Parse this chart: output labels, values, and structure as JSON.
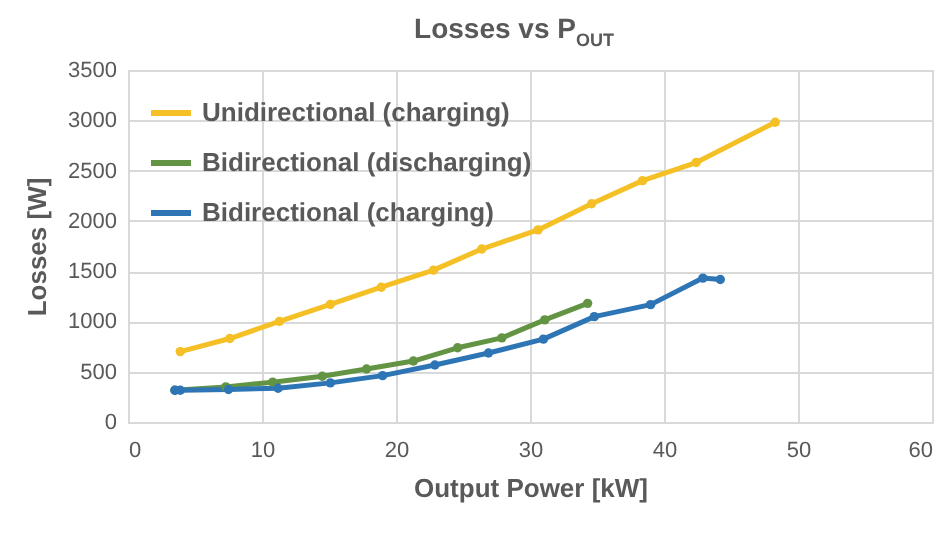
{
  "chart_data": {
    "type": "line",
    "title": "Losses vs P$_{OUT}$",
    "xlabel": "Output Power [kW]",
    "ylabel": "Losses [W]",
    "xlim": [
      0,
      60
    ],
    "xticks": [
      0,
      10,
      20,
      30,
      40,
      50,
      60
    ],
    "ylim": [
      0,
      3500
    ],
    "yticks": [
      0,
      500,
      1000,
      1500,
      2000,
      2500,
      3000,
      3500
    ],
    "grid": true,
    "legend": "top left",
    "marker": "circle",
    "line_style": "solid",
    "series": [
      {
        "name": "Unidirectional (charging)",
        "color": "#f4c025",
        "x": [
          3.9,
          7.6,
          11.3,
          15.1,
          18.9,
          22.8,
          26.4,
          30.6,
          34.6,
          38.4,
          42.4,
          48.3
        ],
        "values": [
          700,
          830,
          1000,
          1170,
          1340,
          1510,
          1720,
          1910,
          2170,
          2400,
          2580,
          2980
        ]
      },
      {
        "name": "Bidirectional (discharging)",
        "color": "#629443",
        "x": [
          3.5,
          7.3,
          10.8,
          14.5,
          17.8,
          21.3,
          24.6,
          27.9,
          31.1,
          34.3
        ],
        "values": [
          316,
          349,
          396,
          455,
          527,
          606,
          738,
          837,
          1015,
          1180
        ]
      },
      {
        "name": "Bidirectional (charging)",
        "color": "#2e75b6",
        "x": [
          3.5,
          3.9,
          7.5,
          11.2,
          15.1,
          19.0,
          22.9,
          26.9,
          31.0,
          34.8,
          39.0,
          42.9,
          44.2
        ],
        "values": [
          316,
          316,
          323,
          336,
          389,
          461,
          567,
          686,
          824,
          1048,
          1167,
          1431,
          1417
        ]
      }
    ]
  }
}
